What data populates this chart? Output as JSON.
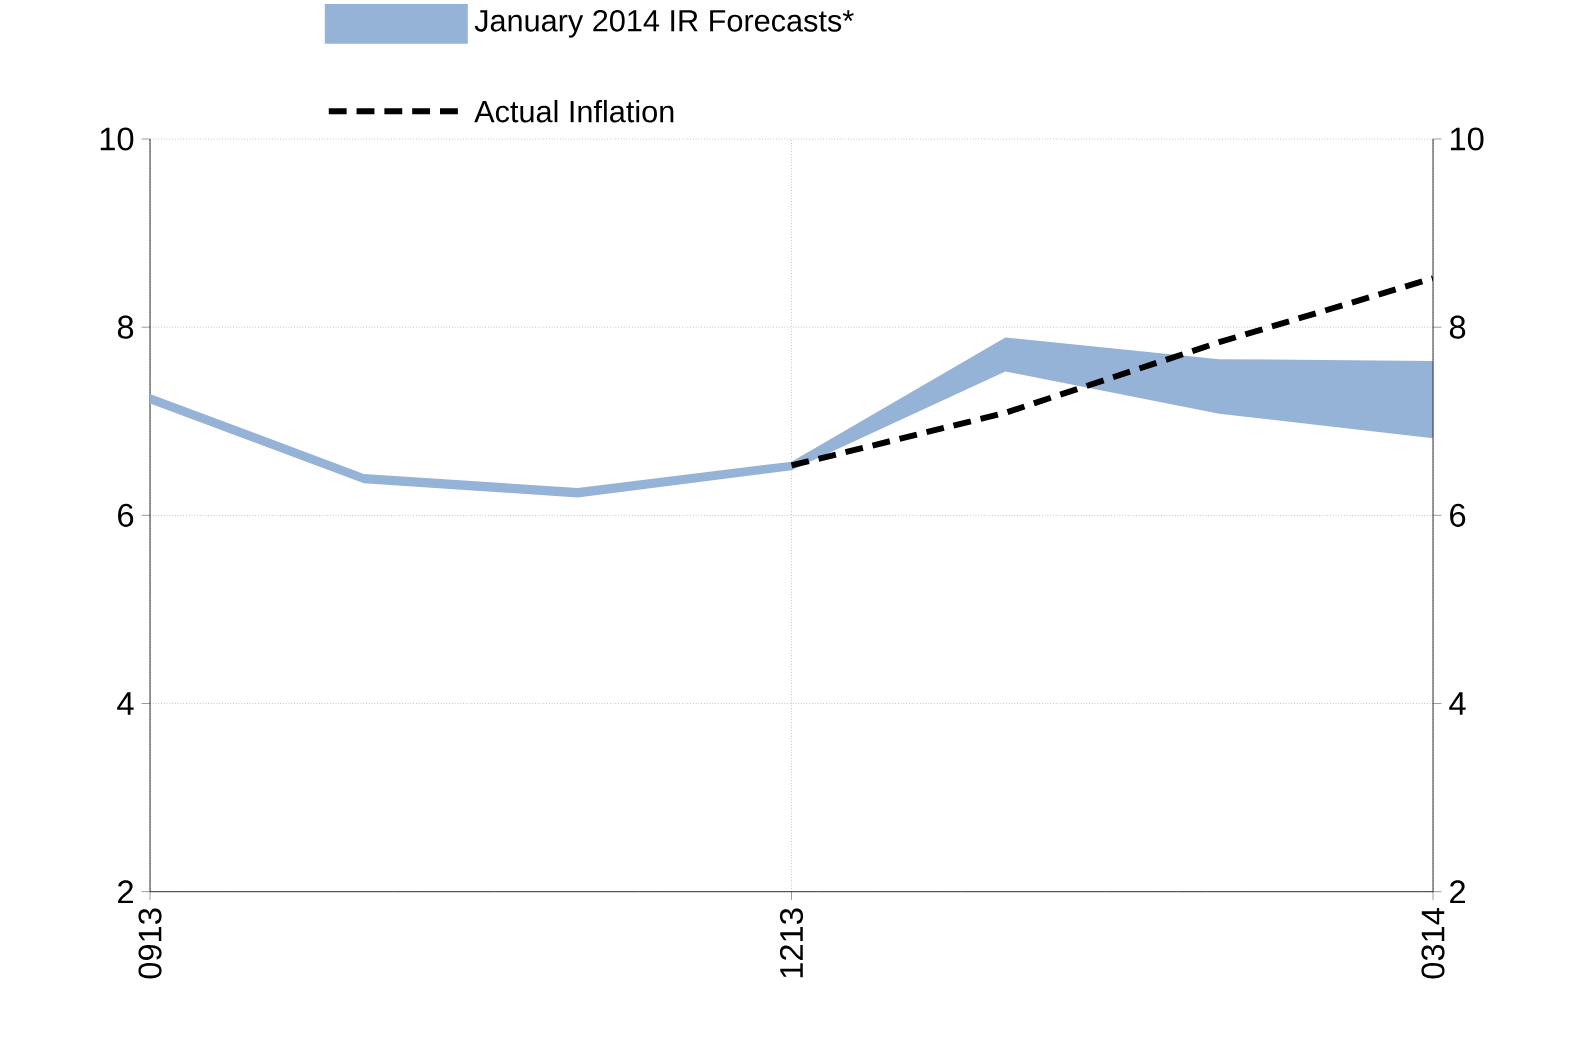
{
  "chart_data": {
    "type": "line",
    "categories": [
      "0913",
      null,
      null,
      "1213",
      null,
      null,
      "0314"
    ],
    "series": [
      {
        "name": "January 2014 IR Forecasts*",
        "color": "#95b3d7",
        "values": [
          null,
          null,
          null,
          null,
          null,
          null,
          null
        ],
        "lower": [
          7.19,
          6.34,
          6.19,
          6.48,
          7.53,
          7.08,
          6.82
        ],
        "upper": [
          7.29,
          6.44,
          6.29,
          6.57,
          7.89,
          7.66,
          7.64
        ]
      },
      {
        "name": "Actual Inflation",
        "color": "#000000",
        "line_style": "dashed",
        "values": [
          null,
          null,
          null,
          6.53,
          7.09,
          7.84,
          8.52
        ]
      }
    ],
    "ylim": [
      2,
      10
    ],
    "yticks": [
      2,
      4,
      6,
      8,
      10
    ],
    "y2lim": [
      2,
      10
    ],
    "y2ticks": [
      2,
      4,
      6,
      8,
      10
    ],
    "grid": true,
    "legend": "top"
  }
}
